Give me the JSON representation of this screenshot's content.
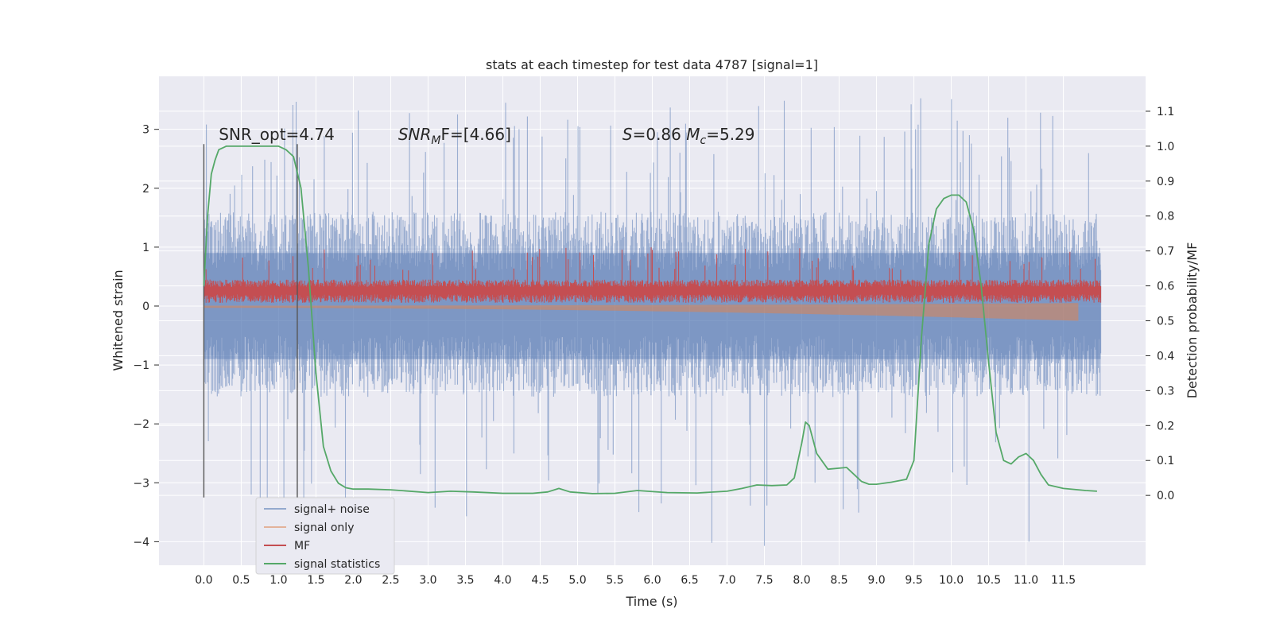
{
  "chart_data": {
    "type": "line",
    "title": "stats at each timestep for test data 4787 [signal=1]",
    "xlabel": "Time (s)",
    "ylabel": "Whitened strain",
    "y2label": "Detection probability/MF",
    "xlim": [
      -0.6,
      12.6
    ],
    "ylim": [
      -4.4,
      3.9
    ],
    "y2lim": [
      -0.2,
      1.2
    ],
    "x_ticks": [
      0.0,
      0.5,
      1.0,
      1.5,
      2.0,
      2.5,
      3.0,
      3.5,
      4.0,
      4.5,
      5.0,
      5.5,
      6.0,
      6.5,
      7.0,
      7.5,
      8.0,
      8.5,
      9.0,
      9.5,
      10.0,
      10.5,
      11.0,
      11.5
    ],
    "x_tick_labels": [
      "0.0",
      "0.5",
      "1.0",
      "1.5",
      "2.0",
      "2.5",
      "3.0",
      "3.5",
      "4.0",
      "4.5",
      "5.0",
      "5.5",
      "6.0",
      "6.5",
      "7.0",
      "7.5",
      "8.0",
      "8.5",
      "9.0",
      "9.5",
      "10.0",
      "10.5",
      "11.0",
      "11.5"
    ],
    "y_ticks": [
      3,
      2,
      1,
      0,
      -1,
      -2,
      -3,
      -4
    ],
    "y_tick_labels": [
      "3",
      "2",
      "1",
      "0",
      "−1",
      "−2",
      "−3",
      "−4"
    ],
    "y2_ticks": [
      1.1,
      1.0,
      0.9,
      0.8,
      0.7,
      0.6,
      0.5,
      0.4,
      0.3,
      0.2,
      0.1,
      0.0
    ],
    "y2_tick_labels": [
      "1.1",
      "1.0",
      "0.9",
      "0.8",
      "0.7",
      "0.6",
      "0.5",
      "0.4",
      "0.3",
      "0.2",
      "0.1",
      "0.0"
    ],
    "grid": true,
    "legend_position": "bottom-left",
    "annotations": [
      {
        "text": "SNR_opt=4.74",
        "x": 0.2
      },
      {
        "text": "SNR",
        "sub": "M",
        "rest": "F=[4.66]",
        "x": 2.6
      },
      {
        "text": "S",
        "rest": "=0.86   ",
        "m": "M",
        "msub": "c",
        "mrest": "=5.29",
        "x": 5.6
      }
    ],
    "markers": [
      {
        "x": 0.0,
        "y_range": [
          -3.25,
          2.75
        ]
      },
      {
        "x": 1.25,
        "y_range": [
          -3.25,
          2.75
        ]
      }
    ],
    "colors": {
      "noise": "#4c72b0",
      "signal": "#dd8452",
      "mf": "#c44e52",
      "stats": "#55a868",
      "background": "#eaeaf2",
      "grid": "#ffffff"
    },
    "series": [
      {
        "name": "signal+ noise",
        "axis": "left",
        "kind": "noise",
        "x_range": [
          0.0,
          12.0
        ],
        "envelope_upper": 1.6,
        "envelope_lower": -1.55,
        "spike_max": 3.6,
        "spike_min": -4.1
      },
      {
        "name": "signal only",
        "axis": "left",
        "kind": "signal",
        "x_range": [
          0.0,
          11.7
        ],
        "amplitude_start": 0.03,
        "amplitude_end": 0.25,
        "final_dip": -0.5
      },
      {
        "name": "MF",
        "axis": "left",
        "kind": "mf",
        "x_range": [
          0.0,
          12.0
        ],
        "band_center": 0.27,
        "band_half_width": 0.18,
        "spike_max": 1.0
      },
      {
        "name": "signal statistics",
        "axis": "right",
        "kind": "line",
        "x": [
          0.0,
          0.05,
          0.1,
          0.15,
          0.2,
          0.3,
          0.5,
          0.8,
          1.0,
          1.1,
          1.2,
          1.3,
          1.4,
          1.5,
          1.6,
          1.7,
          1.8,
          1.9,
          2.0,
          2.2,
          2.5,
          3.0,
          3.3,
          3.6,
          4.0,
          4.4,
          4.6,
          4.75,
          4.9,
          5.2,
          5.5,
          5.8,
          6.2,
          6.6,
          7.0,
          7.2,
          7.4,
          7.6,
          7.8,
          7.9,
          8.0,
          8.05,
          8.1,
          8.2,
          8.35,
          8.5,
          8.6,
          8.7,
          8.8,
          8.9,
          9.0,
          9.2,
          9.4,
          9.5,
          9.6,
          9.7,
          9.8,
          9.9,
          10.0,
          10.1,
          10.2,
          10.3,
          10.4,
          10.5,
          10.6,
          10.7,
          10.8,
          10.9,
          11.0,
          11.1,
          11.2,
          11.3,
          11.5,
          11.8,
          11.95
        ],
        "y": [
          0.6,
          0.8,
          0.92,
          0.96,
          0.99,
          1.0,
          1.0,
          1.0,
          1.0,
          0.99,
          0.97,
          0.88,
          0.65,
          0.35,
          0.14,
          0.07,
          0.035,
          0.022,
          0.018,
          0.018,
          0.016,
          0.008,
          0.012,
          0.01,
          0.006,
          0.006,
          0.01,
          0.02,
          0.01,
          0.005,
          0.006,
          0.014,
          0.008,
          0.007,
          0.012,
          0.02,
          0.03,
          0.028,
          0.03,
          0.05,
          0.15,
          0.21,
          0.2,
          0.12,
          0.075,
          0.078,
          0.08,
          0.06,
          0.04,
          0.032,
          0.032,
          0.038,
          0.046,
          0.1,
          0.45,
          0.72,
          0.82,
          0.85,
          0.86,
          0.86,
          0.84,
          0.76,
          0.6,
          0.38,
          0.18,
          0.1,
          0.09,
          0.11,
          0.12,
          0.1,
          0.06,
          0.03,
          0.02,
          0.014,
          0.012
        ]
      }
    ]
  }
}
